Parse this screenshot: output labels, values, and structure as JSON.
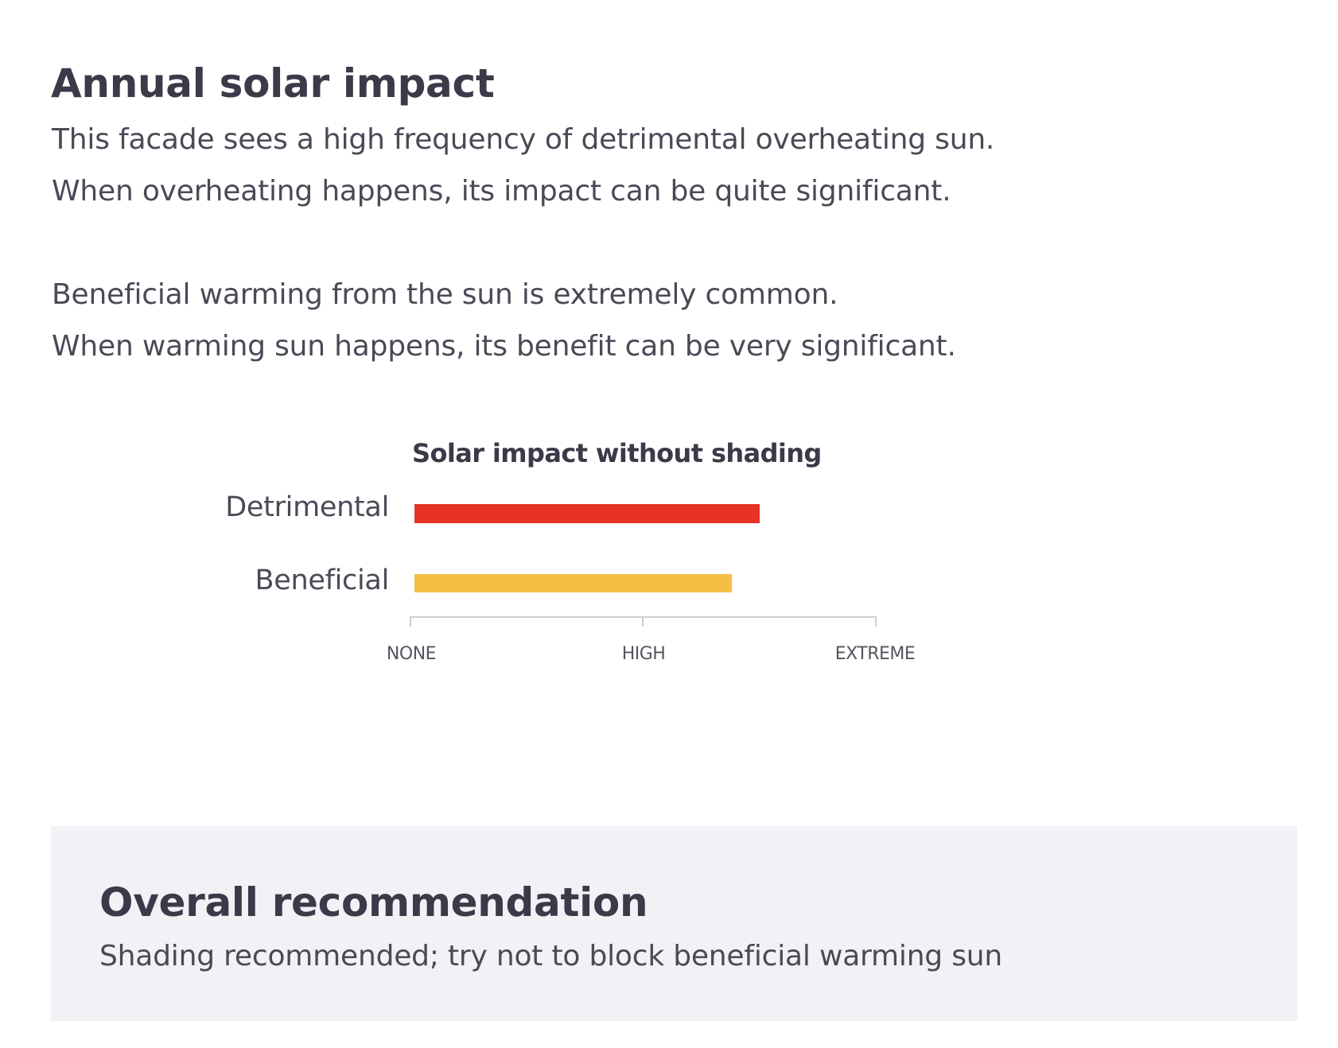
{
  "section": {
    "title": "Annual solar impact",
    "paragraphs": [
      {
        "lines": [
          "This facade sees a high frequency of detrimental overheating sun.",
          "When overheating happens, its impact can be quite significant."
        ]
      },
      {
        "lines": [
          "Beneficial warming from the sun is extremely common.",
          "When warming sun happens, its benefit can be very significant."
        ]
      }
    ]
  },
  "chart_data": {
    "type": "bar",
    "orientation": "horizontal",
    "title": "Solar impact without shading",
    "categories": [
      "Detrimental",
      "Beneficial"
    ],
    "values": [
      1.5,
      1.38
    ],
    "colors": [
      "#e73325",
      "#f5be45"
    ],
    "xlabel": "",
    "ylabel": "",
    "xlim": [
      0,
      2
    ],
    "x_ticks": [
      {
        "value": 0,
        "label": "NONE"
      },
      {
        "value": 1,
        "label": "HIGH"
      },
      {
        "value": 2,
        "label": "EXTREME"
      }
    ],
    "grid": false,
    "legend": "none"
  },
  "recommendation": {
    "title": "Overall recommendation",
    "text": "Shading recommended; try not to block beneficial warming sun",
    "background": "#f1f1f6"
  }
}
